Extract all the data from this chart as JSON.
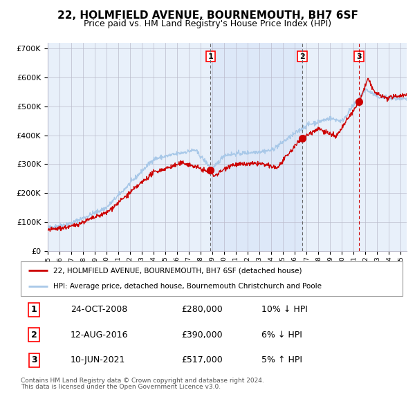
{
  "title": "22, HOLMFIELD AVENUE, BOURNEMOUTH, BH7 6SF",
  "subtitle": "Price paid vs. HM Land Registry's House Price Index (HPI)",
  "title_fontsize": 11,
  "subtitle_fontsize": 9,
  "ylim": [
    0,
    720000
  ],
  "yticks": [
    0,
    100000,
    200000,
    300000,
    400000,
    500000,
    600000,
    700000
  ],
  "ytick_labels": [
    "£0",
    "£100K",
    "£200K",
    "£300K",
    "£400K",
    "£500K",
    "£600K",
    "£700K"
  ],
  "bg_color": "#ffffff",
  "plot_bg_color": "#e8f0fa",
  "grid_color": "#bbbbcc",
  "hpi_color": "#a8c8e8",
  "price_color": "#cc0000",
  "shade_color": "#dde8f8",
  "purchase1": {
    "date_num": 2008.82,
    "price": 280000,
    "label": "1",
    "date_str": "24-OCT-2008",
    "price_str": "£280,000",
    "pct": "10%",
    "dir": "↓"
  },
  "purchase2": {
    "date_num": 2016.62,
    "price": 390000,
    "label": "2",
    "date_str": "12-AUG-2016",
    "price_str": "£390,000",
    "pct": "6%",
    "dir": "↓"
  },
  "purchase3": {
    "date_num": 2021.44,
    "price": 517000,
    "label": "3",
    "date_str": "10-JUN-2021",
    "price_str": "£517,000",
    "pct": "5%",
    "dir": "↑"
  },
  "legend1_label": "22, HOLMFIELD AVENUE, BOURNEMOUTH, BH7 6SF (detached house)",
  "legend2_label": "HPI: Average price, detached house, Bournemouth Christchurch and Poole",
  "footer1": "Contains HM Land Registry data © Crown copyright and database right 2024.",
  "footer2": "This data is licensed under the Open Government Licence v3.0.",
  "xmin": 1995.0,
  "xmax": 2025.5
}
